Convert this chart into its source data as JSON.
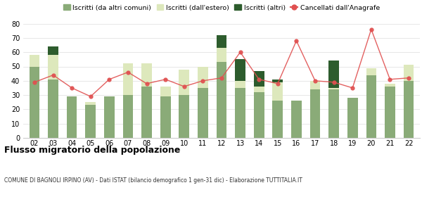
{
  "years": [
    "02",
    "03",
    "04",
    "05",
    "06",
    "07",
    "08",
    "09",
    "10",
    "11",
    "12",
    "13",
    "14",
    "15",
    "16",
    "17",
    "18",
    "19",
    "20",
    "21",
    "22"
  ],
  "iscritti_comuni": [
    50,
    41,
    29,
    23,
    29,
    30,
    36,
    29,
    30,
    35,
    53,
    35,
    32,
    26,
    26,
    34,
    34,
    28,
    44,
    36,
    40
  ],
  "iscritti_estero": [
    8,
    17,
    0,
    2,
    0,
    22,
    16,
    7,
    18,
    15,
    10,
    5,
    4,
    13,
    0,
    6,
    1,
    0,
    5,
    2,
    11
  ],
  "iscritti_altri": [
    0,
    6,
    0,
    0,
    0,
    0,
    0,
    0,
    0,
    0,
    9,
    15,
    11,
    2,
    0,
    0,
    19,
    0,
    0,
    0,
    0
  ],
  "cancellati": [
    39,
    44,
    35,
    29,
    41,
    46,
    38,
    41,
    36,
    40,
    42,
    60,
    41,
    38,
    68,
    40,
    39,
    35,
    76,
    41,
    42
  ],
  "color_comuni": "#8aab78",
  "color_estero": "#dde8bc",
  "color_altri": "#2d5c2d",
  "color_cancellati": "#e05050",
  "title": "Flusso migratorio della popolazione",
  "subtitle": "COMUNE DI BAGNOLI IRPINO (AV) - Dati ISTAT (bilancio demografico 1 gen-31 dic) - Elaborazione TUTTITALIA.IT",
  "ylim": [
    0,
    80
  ],
  "yticks": [
    0,
    10,
    20,
    30,
    40,
    50,
    60,
    70,
    80
  ],
  "legend_labels": [
    "Iscritti (da altri comuni)",
    "Iscritti (dall'estero)",
    "Iscritti (altri)",
    "Cancellati dall'Anagrafe"
  ]
}
